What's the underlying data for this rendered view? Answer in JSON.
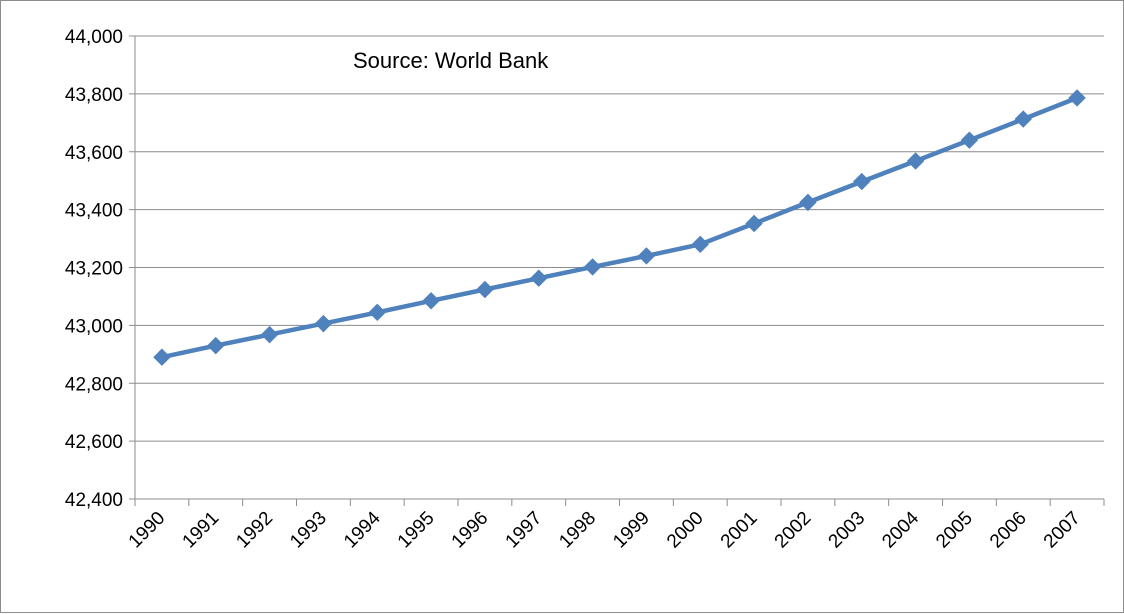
{
  "chart_data": {
    "type": "line",
    "title": "",
    "xlabel": "",
    "ylabel": "",
    "annotation": "Source: World Bank",
    "categories": [
      "1990",
      "1991",
      "1992",
      "1993",
      "1994",
      "1995",
      "1996",
      "1997",
      "1998",
      "1999",
      "2000",
      "2001",
      "2002",
      "2003",
      "2004",
      "2005",
      "2006",
      "2007"
    ],
    "y_tick_labels": [
      "42,400",
      "42,600",
      "42,800",
      "43,000",
      "43,200",
      "43,400",
      "43,600",
      "43,800",
      "44,000"
    ],
    "ylim": [
      42400,
      44000
    ],
    "grid": true,
    "legend": "none",
    "marker": "diamond",
    "series": [
      {
        "values": [
          42890,
          42930,
          42968,
          43006,
          43045,
          43085,
          43124,
          43163,
          43202,
          43240,
          43280,
          43352,
          43425,
          43497,
          43568,
          43640,
          43713,
          43786
        ],
        "color": "#4f81bd"
      }
    ]
  }
}
